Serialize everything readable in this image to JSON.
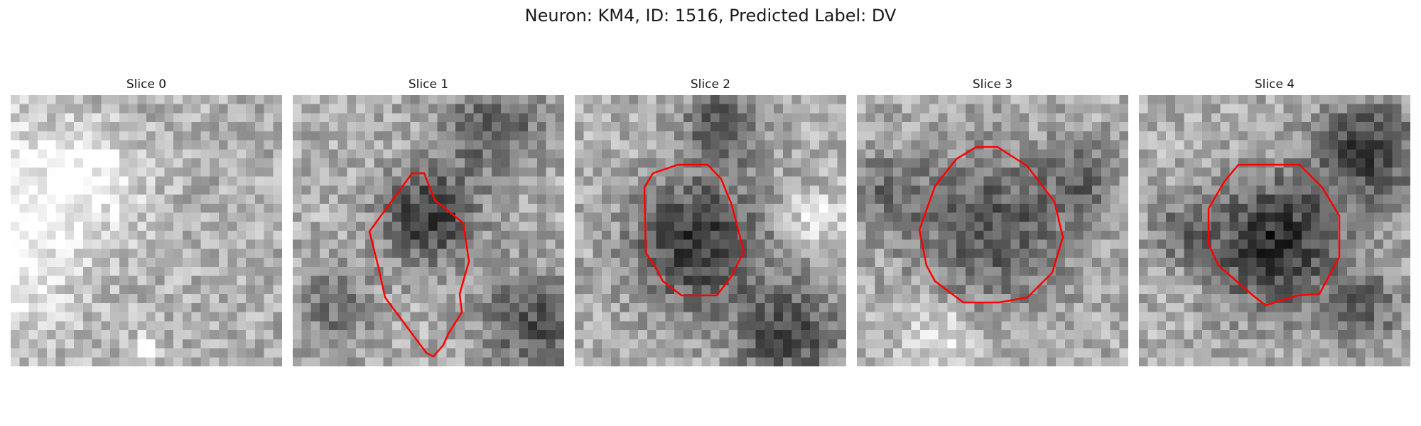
{
  "figure": {
    "title": "Neuron: KM4, ID: 1516, Predicted Label: DV"
  },
  "colors": {
    "contour": "#ff0000",
    "colormap": "gray"
  },
  "panels": [
    {
      "title": "Slice 0",
      "has_contour": false
    },
    {
      "title": "Slice 1",
      "has_contour": true
    },
    {
      "title": "Slice 2",
      "has_contour": true
    },
    {
      "title": "Slice 3",
      "has_contour": true
    },
    {
      "title": "Slice 4",
      "has_contour": true
    }
  ]
}
